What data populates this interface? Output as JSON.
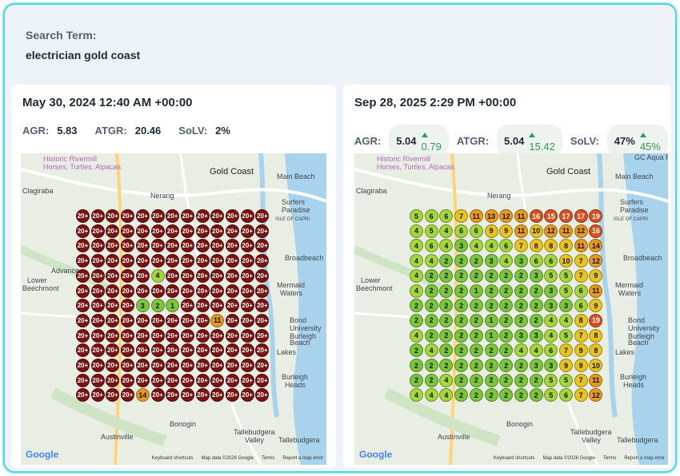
{
  "search": {
    "label": "Search Term:",
    "value": "electrician gold coast"
  },
  "left": {
    "date": "May 30, 2024 12:40 AM +00:00",
    "metrics": {
      "agr_label": "AGR:",
      "agr": "5.83",
      "atgr_label": "ATGR:",
      "atgr": "20.46",
      "solv_label": "SoLV:",
      "solv": "2%"
    },
    "grid": [
      [
        "20+",
        "20+",
        "20+",
        "20+",
        "20+",
        "20+",
        "20+",
        "20+",
        "20+",
        "20+",
        "20+",
        "20+",
        "20+"
      ],
      [
        "20+",
        "20+",
        "20+",
        "20+",
        "20+",
        "20+",
        "20+",
        "20+",
        "20+",
        "20+",
        "20+",
        "20+",
        "20+"
      ],
      [
        "20+",
        "20+",
        "20+",
        "20+",
        "20+",
        "20+",
        "20+",
        "20+",
        "20+",
        "20+",
        "20+",
        "20+",
        "20+"
      ],
      [
        "20+",
        "20+",
        "20+",
        "20+",
        "20+",
        "20+",
        "20+",
        "20+",
        "20+",
        "20+",
        "20+",
        "20+",
        "20+"
      ],
      [
        "20+",
        "20+",
        "20+",
        "20+",
        "20+",
        "4",
        "20+",
        "20+",
        "20+",
        "20+",
        "20+",
        "20+",
        "20+"
      ],
      [
        "20+",
        "20+",
        "20+",
        "20+",
        "20+",
        "20+",
        "20+",
        "20+",
        "20+",
        "20+",
        "20+",
        "20+",
        "20+"
      ],
      [
        "20+",
        "20+",
        "20+",
        "20+",
        "3",
        "2",
        "1",
        "20+",
        "20+",
        "20+",
        "20+",
        "20+",
        "20+"
      ],
      [
        "20+",
        "20+",
        "20+",
        "20+",
        "20+",
        "20+",
        "20+",
        "20+",
        "20+",
        "11",
        "20+",
        "20+",
        "20+"
      ],
      [
        "20+",
        "20+",
        "20+",
        "20+",
        "20+",
        "20+",
        "20+",
        "20+",
        "20+",
        "20+",
        "20+",
        "20+",
        "20+"
      ],
      [
        "20+",
        "20+",
        "20+",
        "20+",
        "20+",
        "20+",
        "20+",
        "20+",
        "20+",
        "20+",
        "20+",
        "20+",
        "20+"
      ],
      [
        "20+",
        "20+",
        "20+",
        "20+",
        "20+",
        "20+",
        "20+",
        "20+",
        "20+",
        "20+",
        "20+",
        "20+",
        "20+"
      ],
      [
        "20+",
        "20+",
        "20+",
        "20+",
        "20+",
        "20+",
        "20+",
        "20+",
        "20+",
        "20+",
        "20+",
        "20+",
        "20+"
      ],
      [
        "20+",
        "20+",
        "20+",
        "20+",
        "14",
        "20+",
        "20+",
        "20+",
        "20+",
        "20+",
        "20+",
        "20+",
        "20+"
      ]
    ],
    "places": {
      "historic": "Historic Rivermill",
      "horses": "Horses, Turtles, Alpacas",
      "gold_coast": "Gold Coast",
      "main_beach": "Main Beach",
      "clagiraba": "Clagiraba",
      "nerang": "Nerang",
      "surfers": "Surfers",
      "paradise": "Paradise",
      "isle": "ISLE OF CAPRI",
      "broadbeach": "Broadbeach",
      "advancetown": "Advance",
      "lower": "Lower",
      "beechmont": "Beechmont",
      "mermaid": "Mermaid",
      "waters": "Waters",
      "bond": "Bond",
      "university": "University",
      "burleigh": "Burleigh",
      "beach": "Beach",
      "lakes": "Lakes",
      "burleigh2": "Burleigh",
      "heads": "Heads",
      "bonogin": "Bonogin",
      "austinville": "Austinville",
      "tallebudgera": "Tallebudgera",
      "valley": "Valley",
      "tallebudgera2": "Tallebudgera"
    },
    "footer": {
      "google": "Google",
      "shortcuts": "Keyboard shortcuts",
      "mapdata": "Map data ©2026 Google",
      "terms": "Terms",
      "report": "Report a map error"
    }
  },
  "right": {
    "date": "Sep 28, 2025 2:29 PM +00:00",
    "metrics": {
      "agr_label": "AGR:",
      "agr": "5.04",
      "agr_delta": "0.79",
      "atgr_label": "ATGR:",
      "atgr": "5.04",
      "atgr_delta": "15.42",
      "solv_label": "SoLV:",
      "solv": "47%",
      "solv_delta": "45%"
    },
    "grid": [
      [
        "5",
        "6",
        "6",
        "7",
        "11",
        "13",
        "12",
        "11",
        "16",
        "15",
        "17",
        "17",
        "19"
      ],
      [
        "4",
        "5",
        "4",
        "6",
        "6",
        "9",
        "9",
        "11",
        "10",
        "12",
        "11",
        "12",
        "16"
      ],
      [
        "4",
        "6",
        "4",
        "3",
        "4",
        "4",
        "6",
        "7",
        "8",
        "8",
        "8",
        "11",
        "14"
      ],
      [
        "4",
        "4",
        "2",
        "2",
        "2",
        "3",
        "4",
        "3",
        "6",
        "6",
        "10",
        "7",
        "12"
      ],
      [
        "4",
        "2",
        "2",
        "2",
        "2",
        "2",
        "2",
        "2",
        "3",
        "5",
        "5",
        "7",
        "9"
      ],
      [
        "4",
        "2",
        "2",
        "2",
        "1",
        "2",
        "2",
        "2",
        "2",
        "3",
        "5",
        "6",
        "11"
      ],
      [
        "2",
        "2",
        "2",
        "2",
        "2",
        "2",
        "2",
        "2",
        "2",
        "3",
        "3",
        "6",
        "9"
      ],
      [
        "2",
        "2",
        "2",
        "2",
        "2",
        "1",
        "2",
        "2",
        "2",
        "4",
        "4",
        "8",
        "19"
      ],
      [
        "4",
        "2",
        "2",
        "2",
        "2",
        "1",
        "2",
        "3",
        "3",
        "4",
        "5",
        "7",
        "8"
      ],
      [
        "2",
        "4",
        "2",
        "2",
        "2",
        "2",
        "2",
        "4",
        "4",
        "6",
        "7",
        "9",
        "8"
      ],
      [
        "2",
        "2",
        "2",
        "2",
        "2",
        "2",
        "2",
        "2",
        "3",
        "3",
        "9",
        "9",
        "10"
      ],
      [
        "2",
        "2",
        "4",
        "2",
        "2",
        "2",
        "2",
        "2",
        "2",
        "5",
        "5",
        "7",
        "11"
      ],
      [
        "4",
        "4",
        "4",
        "2",
        "2",
        "2",
        "2",
        "2",
        "2",
        "5",
        "6",
        "7",
        "12"
      ]
    ],
    "places": {
      "historic": "Historic Rivermill",
      "horses": "Horses, Turtles, Alpacas",
      "gold_coast": "Gold Coast",
      "main_beach": "Main Beach",
      "clagiraba": "Clagiraba",
      "nerang": "Nerang",
      "surfers": "Surfers",
      "paradise": "Paradise",
      "isle": "ISLE OF CAPRI",
      "broadbeach": "Broadbeach",
      "lower": "Lower",
      "beechmont": "Beechmont",
      "mermaid": "Mermaid",
      "waters": "Waters",
      "bond": "Bond",
      "university": "University",
      "burleigh": "Burleigh",
      "beach": "Beach",
      "lakes": "Lakes",
      "burleigh2": "Burleigh",
      "heads": "Heads",
      "bonogin": "Bonogin",
      "austinville": "Austinville",
      "tallebudgera": "Tallebudgera",
      "valley": "Valley",
      "tallebudgera2": "Tallebudgera",
      "gc_aqua": "GC Aqua P"
    },
    "footer": {
      "google": "Google",
      "shortcuts": "Keyboard shortcuts",
      "mapdata": "Map data ©2026 Google",
      "terms": "Terms",
      "report": "Report a map error"
    }
  },
  "colors": {
    "red": "#7a1212",
    "orange_red": "#d9501e",
    "orange": "#e89a1c",
    "yellow": "#e8c51e",
    "lime": "#a5d63a",
    "green": "#7cc63a",
    "accent": "#4dd3dd",
    "up": "#2f9e55"
  }
}
